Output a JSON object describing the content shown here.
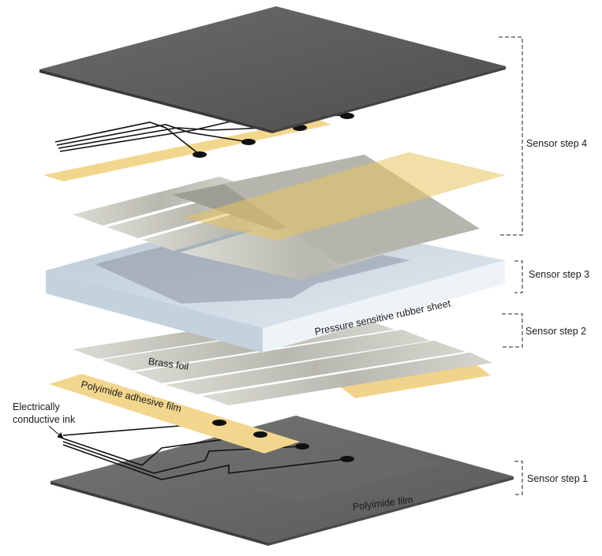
{
  "diagram": {
    "step_labels": {
      "step4": "Sensor step 4",
      "step3": "Sensor step 3",
      "step2": "Sensor step 2",
      "step1": "Sensor step 1"
    },
    "layer_labels": {
      "rubber_sheet": "Pressure sensitive rubber sheet",
      "brass_foil": "Brass foil",
      "adhesive_film": "Polyimide adhesive film",
      "ink_line1": "Electrically",
      "ink_line2": "conductive ink",
      "polyimide_film": "Polyimide film"
    },
    "colors": {
      "polyimide_dark": "#5a5a5a",
      "adhesive_yellow": "#f3d68e",
      "brass_grey": "#c9c8c0",
      "rubber_blue": "#cfdde8",
      "ink_black": "#111111"
    }
  }
}
